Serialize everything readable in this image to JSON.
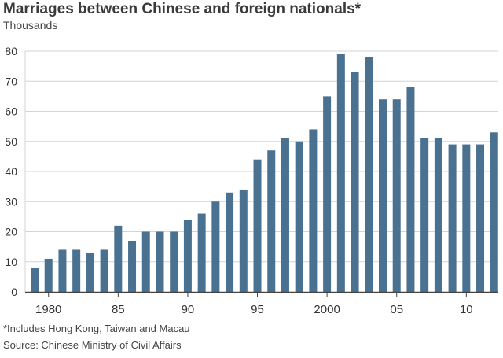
{
  "chart_data": {
    "type": "bar",
    "title": "Marriages between Chinese and foreign nationals*",
    "units": "Thousands",
    "footnote": "*Includes Hong Kong, Taiwan and Macau",
    "source": "Source: Chinese Ministry of Civil Affairs",
    "ylim": [
      0,
      80
    ],
    "yticks": [
      0,
      10,
      20,
      30,
      40,
      50,
      60,
      70,
      80
    ],
    "grid": true,
    "categories": [
      1979,
      1980,
      1981,
      1982,
      1983,
      1984,
      1985,
      1986,
      1987,
      1988,
      1989,
      1990,
      1991,
      1992,
      1993,
      1994,
      1995,
      1996,
      1997,
      1998,
      1999,
      2000,
      2001,
      2002,
      2003,
      2004,
      2005,
      2006,
      2007,
      2008,
      2009,
      2010,
      2011,
      2012
    ],
    "values": [
      8,
      11,
      14,
      14,
      13,
      14,
      22,
      17,
      20,
      20,
      20,
      24,
      26,
      30,
      33,
      34,
      44,
      47,
      51,
      50,
      54,
      65,
      79,
      73,
      78,
      64,
      64,
      68,
      51,
      51,
      49,
      49,
      49,
      53
    ],
    "xtick_labels": [
      {
        "year": 1980,
        "label": "1980"
      },
      {
        "year": 1985,
        "label": "85"
      },
      {
        "year": 1990,
        "label": "90"
      },
      {
        "year": 1995,
        "label": "95"
      },
      {
        "year": 2000,
        "label": "2000"
      },
      {
        "year": 2005,
        "label": "05"
      },
      {
        "year": 2010,
        "label": "10"
      }
    ],
    "colors": {
      "bar": "#4a7190",
      "grid": "#d4d4d4",
      "axis": "#444444"
    }
  }
}
